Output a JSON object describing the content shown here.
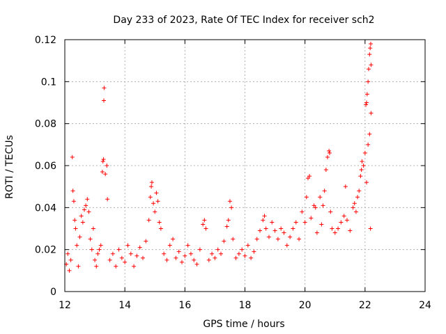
{
  "chart_data": {
    "type": "scatter",
    "title": "Day 233 of 2023, Rate Of TEC Index for receiver sch2",
    "xlabel": "GPS time / hours",
    "ylabel": "ROTI / TECUs",
    "xlim": [
      12,
      24
    ],
    "ylim": [
      0,
      0.12
    ],
    "x_ticks": [
      "12",
      "14",
      "16",
      "18",
      "20",
      "22",
      "24"
    ],
    "y_ticks": [
      "0",
      "0.02",
      "0.04",
      "0.06",
      "0.08",
      "0.1",
      "0.12"
    ],
    "grid": true,
    "marker": "plus",
    "color": "#ff0000",
    "series": [
      {
        "points": [
          [
            12.05,
            0.013
          ],
          [
            12.1,
            0.018
          ],
          [
            12.15,
            0.01
          ],
          [
            12.2,
            0.015
          ],
          [
            12.25,
            0.064
          ],
          [
            12.27,
            0.048
          ],
          [
            12.3,
            0.043
          ],
          [
            12.33,
            0.034
          ],
          [
            12.36,
            0.03
          ],
          [
            12.4,
            0.022
          ],
          [
            12.45,
            0.012
          ],
          [
            12.5,
            0.026
          ],
          [
            12.55,
            0.036
          ],
          [
            12.6,
            0.033
          ],
          [
            12.65,
            0.039
          ],
          [
            12.7,
            0.041
          ],
          [
            12.75,
            0.044
          ],
          [
            12.8,
            0.038
          ],
          [
            12.85,
            0.025
          ],
          [
            12.9,
            0.02
          ],
          [
            12.95,
            0.03
          ],
          [
            13.0,
            0.015
          ],
          [
            13.05,
            0.012
          ],
          [
            13.1,
            0.018
          ],
          [
            13.15,
            0.02
          ],
          [
            13.2,
            0.022
          ],
          [
            13.25,
            0.057
          ],
          [
            13.27,
            0.062
          ],
          [
            13.29,
            0.063
          ],
          [
            13.3,
            0.091
          ],
          [
            13.31,
            0.097
          ],
          [
            13.35,
            0.056
          ],
          [
            13.4,
            0.06
          ],
          [
            13.42,
            0.044
          ],
          [
            13.5,
            0.015
          ],
          [
            13.6,
            0.018
          ],
          [
            13.7,
            0.012
          ],
          [
            13.8,
            0.02
          ],
          [
            13.9,
            0.016
          ],
          [
            14.0,
            0.014
          ],
          [
            14.1,
            0.022
          ],
          [
            14.2,
            0.018
          ],
          [
            14.3,
            0.012
          ],
          [
            14.4,
            0.017
          ],
          [
            14.5,
            0.021
          ],
          [
            14.6,
            0.016
          ],
          [
            14.7,
            0.024
          ],
          [
            14.8,
            0.034
          ],
          [
            14.85,
            0.045
          ],
          [
            14.88,
            0.05
          ],
          [
            14.9,
            0.052
          ],
          [
            14.95,
            0.042
          ],
          [
            15.0,
            0.038
          ],
          [
            15.05,
            0.047
          ],
          [
            15.1,
            0.043
          ],
          [
            15.15,
            0.033
          ],
          [
            15.2,
            0.03
          ],
          [
            15.3,
            0.018
          ],
          [
            15.4,
            0.015
          ],
          [
            15.5,
            0.022
          ],
          [
            15.6,
            0.025
          ],
          [
            15.7,
            0.016
          ],
          [
            15.8,
            0.019
          ],
          [
            15.9,
            0.014
          ],
          [
            16.0,
            0.017
          ],
          [
            16.1,
            0.022
          ],
          [
            16.2,
            0.018
          ],
          [
            16.3,
            0.015
          ],
          [
            16.4,
            0.013
          ],
          [
            16.5,
            0.02
          ],
          [
            16.6,
            0.032
          ],
          [
            16.65,
            0.034
          ],
          [
            16.7,
            0.03
          ],
          [
            16.8,
            0.015
          ],
          [
            16.9,
            0.018
          ],
          [
            17.0,
            0.016
          ],
          [
            17.1,
            0.02
          ],
          [
            17.2,
            0.018
          ],
          [
            17.3,
            0.024
          ],
          [
            17.4,
            0.031
          ],
          [
            17.45,
            0.034
          ],
          [
            17.5,
            0.043
          ],
          [
            17.55,
            0.04
          ],
          [
            17.6,
            0.025
          ],
          [
            17.7,
            0.016
          ],
          [
            17.8,
            0.018
          ],
          [
            17.9,
            0.02
          ],
          [
            18.0,
            0.017
          ],
          [
            18.1,
            0.022
          ],
          [
            18.2,
            0.016
          ],
          [
            18.3,
            0.019
          ],
          [
            18.4,
            0.025
          ],
          [
            18.5,
            0.029
          ],
          [
            18.6,
            0.034
          ],
          [
            18.65,
            0.036
          ],
          [
            18.7,
            0.03
          ],
          [
            18.8,
            0.026
          ],
          [
            18.9,
            0.033
          ],
          [
            19.0,
            0.029
          ],
          [
            19.1,
            0.025
          ],
          [
            19.2,
            0.03
          ],
          [
            19.3,
            0.028
          ],
          [
            19.4,
            0.022
          ],
          [
            19.5,
            0.026
          ],
          [
            19.6,
            0.03
          ],
          [
            19.7,
            0.033
          ],
          [
            19.8,
            0.025
          ],
          [
            19.9,
            0.038
          ],
          [
            20.0,
            0.033
          ],
          [
            20.05,
            0.045
          ],
          [
            20.1,
            0.054
          ],
          [
            20.15,
            0.055
          ],
          [
            20.2,
            0.035
          ],
          [
            20.3,
            0.041
          ],
          [
            20.35,
            0.04
          ],
          [
            20.4,
            0.028
          ],
          [
            20.5,
            0.045
          ],
          [
            20.55,
            0.032
          ],
          [
            20.6,
            0.041
          ],
          [
            20.65,
            0.048
          ],
          [
            20.7,
            0.058
          ],
          [
            20.75,
            0.064
          ],
          [
            20.8,
            0.067
          ],
          [
            20.82,
            0.066
          ],
          [
            20.85,
            0.038
          ],
          [
            20.9,
            0.03
          ],
          [
            21.0,
            0.028
          ],
          [
            21.1,
            0.03
          ],
          [
            21.2,
            0.033
          ],
          [
            21.3,
            0.036
          ],
          [
            21.35,
            0.05
          ],
          [
            21.4,
            0.034
          ],
          [
            21.5,
            0.029
          ],
          [
            21.6,
            0.04
          ],
          [
            21.65,
            0.042
          ],
          [
            21.7,
            0.038
          ],
          [
            21.75,
            0.045
          ],
          [
            21.8,
            0.048
          ],
          [
            21.85,
            0.055
          ],
          [
            21.88,
            0.058
          ],
          [
            21.9,
            0.062
          ],
          [
            21.95,
            0.06
          ],
          [
            22.0,
            0.066
          ],
          [
            22.03,
            0.089
          ],
          [
            22.05,
            0.09
          ],
          [
            22.07,
            0.094
          ],
          [
            22.1,
            0.1
          ],
          [
            22.12,
            0.106
          ],
          [
            22.15,
            0.113
          ],
          [
            22.17,
            0.116
          ],
          [
            22.19,
            0.118
          ],
          [
            22.2,
            0.108
          ],
          [
            22.2,
            0.085
          ],
          [
            22.15,
            0.075
          ],
          [
            22.1,
            0.07
          ],
          [
            22.05,
            0.052
          ],
          [
            22.18,
            0.03
          ]
        ]
      }
    ]
  }
}
